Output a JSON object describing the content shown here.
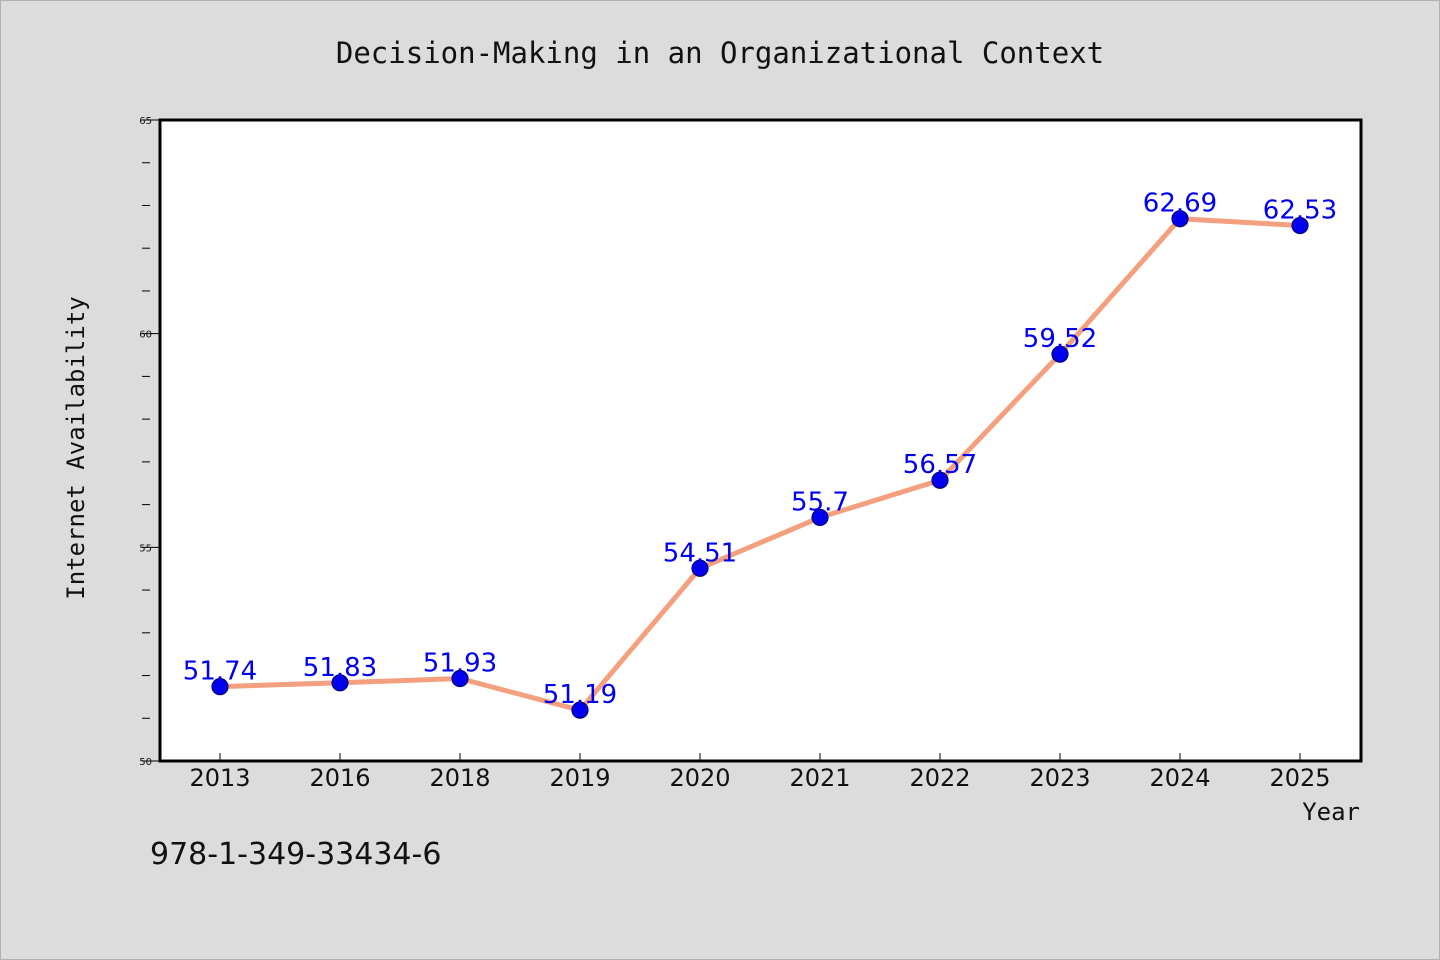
{
  "chart_data": {
    "type": "line",
    "title": "Decision-Making in an Organizational Context",
    "xlabel": "Year",
    "ylabel": "Internet Availability",
    "categories": [
      "2013",
      "2016",
      "2018",
      "2019",
      "2020",
      "2021",
      "2022",
      "2023",
      "2024",
      "2025"
    ],
    "series": [
      {
        "values": [
          51.74,
          51.83,
          51.93,
          51.19,
          54.51,
          55.7,
          56.57,
          59.52,
          62.69,
          62.53
        ],
        "data_labels": [
          "51.74",
          "51.83",
          "51.93",
          "51.19",
          "54.51",
          "55.7",
          "56.57",
          "59.52",
          "62.69",
          "62.53"
        ]
      }
    ],
    "ylim": [
      50,
      65
    ],
    "yticks": [
      50,
      55,
      60,
      65
    ],
    "ytick_labels": [
      "50",
      "55",
      "60",
      "65"
    ],
    "grid": false,
    "colors": {
      "line": "#f4a07e",
      "marker": "#0000ee",
      "data_label": "#0000ee",
      "background": "#dcdcdc",
      "plot_background": "#ffffff"
    }
  },
  "footer": {
    "isbn": "978-1-349-33434-6"
  }
}
